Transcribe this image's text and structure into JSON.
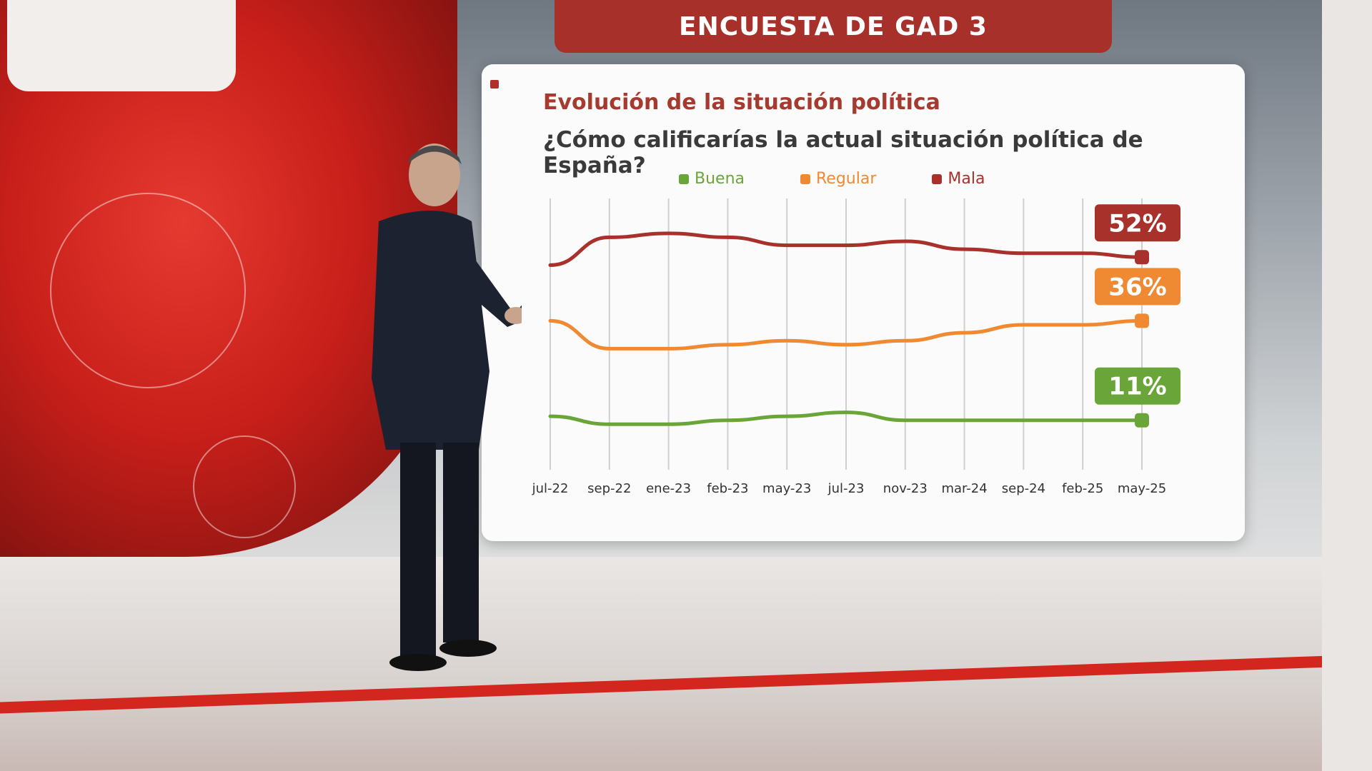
{
  "banner": {
    "title": "ENCUESTA DE GAD 3"
  },
  "board": {
    "title": "Evolución de la situación política",
    "question": "¿Cómo calificarías la actual situación política de España?"
  },
  "colors": {
    "buena": "#6aa53a",
    "regular": "#f08a32",
    "mala": "#a8312b",
    "banner": "#a8302a"
  },
  "chart_data": {
    "type": "line",
    "title": "Evolución de la situación política",
    "subtitle": "¿Cómo calificarías la actual situación política de España?",
    "categories": [
      "jul-22",
      "sep-22",
      "ene-23",
      "feb-23",
      "may-23",
      "jul-23",
      "nov-23",
      "mar-24",
      "sep-24",
      "feb-25",
      "may-25"
    ],
    "series": [
      {
        "name": "Buena",
        "color": "#6aa53a",
        "values": [
          12,
          10,
          10,
          11,
          12,
          13,
          11,
          11,
          11,
          11,
          11
        ]
      },
      {
        "name": "Regular",
        "color": "#f08a32",
        "values": [
          36,
          29,
          29,
          30,
          31,
          30,
          31,
          33,
          35,
          35,
          36
        ]
      },
      {
        "name": "Mala",
        "color": "#a8312b",
        "values": [
          50,
          57,
          58,
          57,
          55,
          55,
          56,
          54,
          53,
          53,
          52
        ]
      }
    ],
    "final_labels": [
      "11%",
      "36%",
      "52%"
    ],
    "ylim": [
      0,
      70
    ],
    "grid": "vertical",
    "legend": "top"
  }
}
